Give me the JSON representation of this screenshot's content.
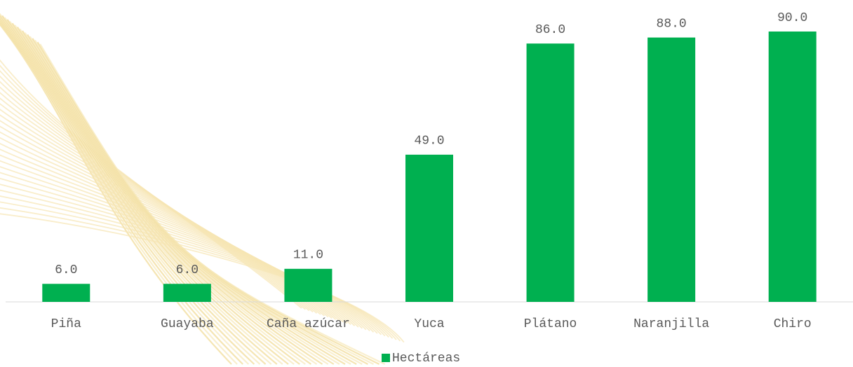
{
  "chart_data": {
    "type": "bar",
    "categories": [
      "Piña",
      "Guayaba",
      "Caña azúcar",
      "Yuca",
      "Plátano",
      "Naranjilla",
      "Chiro"
    ],
    "series": [
      {
        "name": "Hectáreas",
        "color": "#00b050",
        "values": [
          6,
          6,
          11,
          49,
          86,
          88,
          90
        ],
        "value_labels": [
          "6.0",
          "6.0",
          "11.0",
          "49.0",
          "86.0",
          "88.0",
          "90.0"
        ]
      }
    ],
    "legend": "bottom"
  }
}
